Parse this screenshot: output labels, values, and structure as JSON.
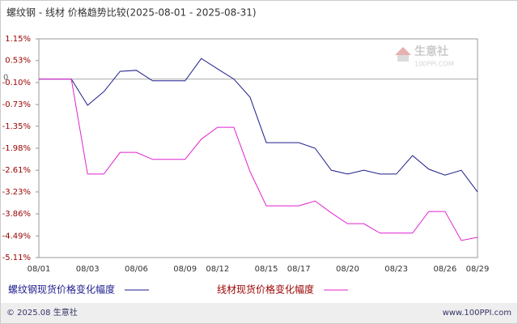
{
  "chart_data": {
    "type": "line",
    "title": "螺纹钢 - 线材 价格趋势比较(2025-08-01 - 2025-08-31)",
    "categories": [
      "08/01",
      null,
      null,
      "08/03",
      null,
      null,
      "08/06",
      null,
      null,
      "08/09",
      null,
      "08/12",
      null,
      null,
      "08/15",
      null,
      "08/17",
      null,
      null,
      "08/20",
      null,
      null,
      "08/23",
      null,
      null,
      "08/26",
      null,
      "08/29"
    ],
    "series": [
      {
        "name": "螺纹钢现货价格变化幅度",
        "color": "#1c1c8c",
        "values": [
          0,
          0,
          0,
          -0.75,
          -0.36,
          0.22,
          0.25,
          -0.05,
          -0.05,
          -0.05,
          0.59,
          0.29,
          0,
          -0.52,
          -1.82,
          -1.82,
          -1.82,
          -1.98,
          -2.61,
          -2.72,
          -2.61,
          -2.72,
          -2.72,
          -2.19,
          -2.58,
          -2.75,
          -2.61,
          -3.23
        ]
      },
      {
        "name": "线材现货价格变化幅度",
        "color": "#e020d0",
        "values": [
          0,
          0,
          0,
          -2.72,
          -2.72,
          -2.1,
          -2.1,
          -2.3,
          -2.3,
          -2.3,
          -1.72,
          -1.38,
          -1.38,
          -2.65,
          -3.63,
          -3.63,
          -3.63,
          -3.49,
          -3.83,
          -4.14,
          -4.14,
          -4.41,
          -4.41,
          -4.41,
          -3.79,
          -3.79,
          -4.62,
          -4.53
        ]
      }
    ],
    "ylim": [
      -5.11,
      1.15
    ],
    "yticks": [
      {
        "value": 1.15,
        "label": "1.15%"
      },
      {
        "value": 0.53,
        "label": "0.53%"
      },
      {
        "value": -0.1,
        "label": "-0.10%"
      },
      {
        "value": -0.73,
        "label": "-0.73%"
      },
      {
        "value": -1.35,
        "label": "-1.35%"
      },
      {
        "value": -1.98,
        "label": "-1.98%"
      },
      {
        "value": -2.61,
        "label": "-2.61%"
      },
      {
        "value": -3.23,
        "label": "-3.23%"
      },
      {
        "value": -3.86,
        "label": "-3.86%"
      },
      {
        "value": -4.49,
        "label": "-4.49%"
      },
      {
        "value": -5.11,
        "label": "-5.11%"
      }
    ],
    "reference_line": {
      "value": 0,
      "label": "0"
    },
    "watermark": {
      "name": "生意社",
      "site": "100PPI.COM"
    },
    "footer": {
      "left": "© 2025.08 生意社",
      "right": "www.100PPI.com"
    },
    "grid": false
  }
}
